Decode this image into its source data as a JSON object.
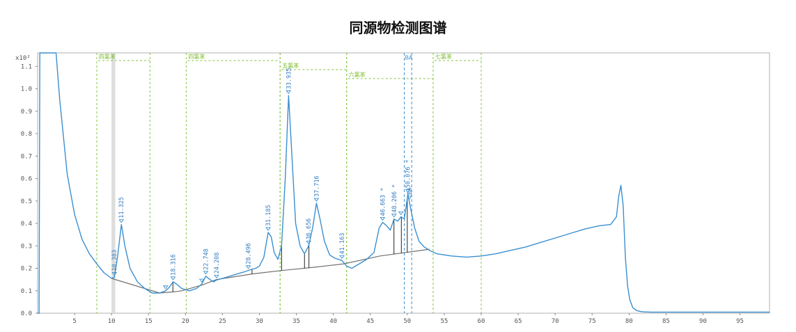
{
  "title": "同源物检测图谱",
  "chart_data": {
    "type": "line",
    "title": "同源物检测图谱",
    "xlabel": "",
    "ylabel": "",
    "y_unit_label": "x10²",
    "xlim": [
      0,
      99
    ],
    "ylim": [
      0,
      1.16
    ],
    "x_ticks": [
      5,
      10,
      15,
      20,
      25,
      30,
      35,
      40,
      45,
      50,
      55,
      60,
      65,
      70,
      75,
      80,
      85,
      90,
      95
    ],
    "y_ticks": [
      0.0,
      0.1,
      0.2,
      0.3,
      0.4,
      0.5,
      0.6,
      0.7,
      0.8,
      0.9,
      1.0,
      1.1
    ],
    "y_tick_labels": [
      "0.0",
      "0.1",
      "0.2",
      "0.3",
      "0.4",
      "0.5",
      "0.6",
      "0.7",
      "0.8",
      "0.9",
      "1.0",
      "1.1"
    ],
    "grid": false,
    "series": [
      {
        "color": "#3a8fd0",
        "x": [
          0.0,
          0.2,
          0.3,
          0.4,
          0.5,
          1.0,
          2.0,
          2.5,
          3.0,
          4.0,
          5.0,
          6.0,
          7.0,
          8.0,
          9.0,
          10.0,
          10.38,
          10.8,
          11.33,
          11.8,
          12.5,
          13.5,
          14.5,
          15.5,
          16.5,
          17.3,
          17.8,
          18.32,
          18.8,
          19.5,
          20.5,
          21.5,
          22.2,
          22.75,
          23.3,
          23.8,
          24.21,
          25.0,
          26.0,
          27.0,
          28.0,
          28.9,
          29.5,
          30.0,
          30.6,
          31.19,
          31.6,
          32.0,
          32.5,
          33.0,
          33.5,
          33.95,
          34.4,
          34.9,
          35.5,
          36.1,
          36.66,
          37.2,
          37.72,
          38.2,
          38.8,
          39.5,
          40.2,
          41.16,
          41.8,
          42.5,
          43.5,
          44.5,
          45.5,
          46.2,
          46.66,
          47.2,
          47.7,
          48.21,
          48.7,
          49.15,
          49.6,
          50.08,
          50.5,
          51.0,
          51.6,
          52.3,
          53.0,
          54.0,
          56.0,
          58.0,
          60.0,
          62.0,
          64.0,
          66.0,
          68.0,
          70.0,
          72.0,
          74.0,
          76.0,
          77.5,
          78.3,
          78.6,
          78.9,
          79.2,
          79.5,
          79.8,
          80.1,
          80.5,
          81.0,
          81.5,
          82.0,
          83.0,
          85.0,
          88.0,
          92.0,
          95.0,
          99.0
        ],
        "y": [
          0.0,
          0.0,
          1.16,
          1.16,
          1.16,
          1.16,
          1.16,
          1.16,
          0.95,
          0.62,
          0.44,
          0.33,
          0.265,
          0.22,
          0.18,
          0.155,
          0.16,
          0.25,
          0.395,
          0.3,
          0.2,
          0.14,
          0.11,
          0.09,
          0.09,
          0.1,
          0.115,
          0.14,
          0.13,
          0.11,
          0.1,
          0.11,
          0.13,
          0.165,
          0.15,
          0.14,
          0.148,
          0.155,
          0.165,
          0.175,
          0.185,
          0.195,
          0.2,
          0.21,
          0.25,
          0.36,
          0.34,
          0.27,
          0.24,
          0.3,
          0.6,
          0.97,
          0.7,
          0.4,
          0.3,
          0.265,
          0.3,
          0.38,
          0.49,
          0.42,
          0.32,
          0.26,
          0.245,
          0.235,
          0.21,
          0.2,
          0.22,
          0.24,
          0.27,
          0.38,
          0.405,
          0.39,
          0.37,
          0.42,
          0.41,
          0.43,
          0.42,
          0.53,
          0.46,
          0.38,
          0.32,
          0.295,
          0.28,
          0.265,
          0.255,
          0.25,
          0.255,
          0.265,
          0.28,
          0.295,
          0.315,
          0.335,
          0.355,
          0.375,
          0.39,
          0.395,
          0.43,
          0.52,
          0.57,
          0.48,
          0.25,
          0.12,
          0.06,
          0.025,
          0.012,
          0.008,
          0.006,
          0.005,
          0.005,
          0.005,
          0.005,
          0.005,
          0.005
        ]
      }
    ],
    "baseline": {
      "color": "#707070",
      "x": [
        10.0,
        16.5,
        18.3,
        19.5,
        22.2,
        24.21,
        29.0,
        33.0,
        37.5,
        41.4,
        46.3,
        53.0
      ],
      "y": [
        0.155,
        0.09,
        0.095,
        0.1,
        0.125,
        0.15,
        0.175,
        0.19,
        0.205,
        0.22,
        0.255,
        0.285
      ]
    },
    "peaks": [
      {
        "rt": 10.383,
        "label": "10.383",
        "y": 0.16
      },
      {
        "rt": 11.325,
        "label": "11.325",
        "y": 0.395
      },
      {
        "rt": 18.316,
        "label": "18.316",
        "y": 0.14
      },
      {
        "rt": 22.748,
        "label": "22.748",
        "y": 0.165
      },
      {
        "rt": 24.208,
        "label": "24.208",
        "y": 0.148
      },
      {
        "rt": 28.496,
        "label": "28.496",
        "y": 0.19
      },
      {
        "rt": 31.185,
        "label": "31.185",
        "y": 0.36
      },
      {
        "rt": 33.935,
        "label": "33.935",
        "y": 0.97
      },
      {
        "rt": 36.656,
        "label": "36.656",
        "y": 0.3
      },
      {
        "rt": 37.716,
        "label": "37.716",
        "y": 0.49
      },
      {
        "rt": 41.163,
        "label": "41.163",
        "y": 0.235
      },
      {
        "rt": 46.663,
        "label": "46.663 *",
        "y": 0.405
      },
      {
        "rt": 48.206,
        "label": "48.206 *",
        "y": 0.42
      },
      {
        "rt": 50.076,
        "label": "50.076 *",
        "y": 0.53
      },
      {
        "rt": 50.3,
        "label": "BA",
        "y": 0.5
      }
    ],
    "unlabeled_peak_markers": [
      {
        "rt": 17.3,
        "y": 0.1
      },
      {
        "rt": 22.2,
        "y": 0.13
      },
      {
        "rt": 49.15,
        "y": 0.43
      }
    ],
    "drop_lines": [
      {
        "x": 10.0
      },
      {
        "x": 16.5
      },
      {
        "x": 18.3
      },
      {
        "x": 29.0
      },
      {
        "x": 33.0
      },
      {
        "x": 36.1
      },
      {
        "x": 36.7
      },
      {
        "x": 48.2
      },
      {
        "x": 49.2
      },
      {
        "x": 50.0
      }
    ],
    "group_regions": [
      {
        "label": "四氯苯",
        "x_start": 8.0,
        "x_end": 15.2,
        "y_label": 1.135
      },
      {
        "label": "四氯苯",
        "x_start": 20.1,
        "x_end": 32.8,
        "y_label": 1.135
      },
      {
        "label": "五氯苯",
        "x_start": 32.8,
        "x_end": 41.8,
        "y_label": 1.095
      },
      {
        "label": "六氯苯",
        "x_start": 41.8,
        "x_end": 53.5,
        "y_label": 1.055
      },
      {
        "label": "七氯苯",
        "x_start": 53.5,
        "x_end": 60.0,
        "y_label": 1.135
      }
    ],
    "vertical_markers": [
      {
        "label": "BA",
        "x_start": 49.6,
        "x_end": 50.6
      }
    ],
    "shaded_region": {
      "x_start": 10.0,
      "x_end": 10.5
    }
  }
}
